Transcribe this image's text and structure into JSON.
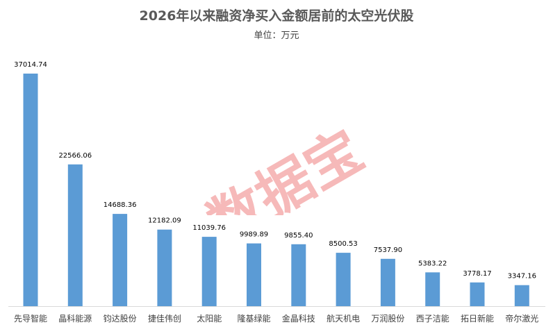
{
  "chart_data": {
    "type": "bar",
    "title": "2026年以来融资净买入金额居前的太空光伏股",
    "subtitle": "单位：万元",
    "categories": [
      "先导智能",
      "晶科能源",
      "钧达股份",
      "捷佳伟创",
      "太阳能",
      "隆基绿能",
      "金晶科技",
      "航天机电",
      "万润股份",
      "西子洁能",
      "拓日新能",
      "帝尔激光"
    ],
    "values": [
      37014.74,
      22566.06,
      14688.36,
      12182.09,
      11039.76,
      9989.89,
      9855.4,
      8500.53,
      7537.9,
      5383.22,
      3778.17,
      3347.16
    ],
    "value_labels": [
      "37014.74",
      "22566.06",
      "14688.36",
      "12182.09",
      "11039.76",
      "9989.89",
      "9855.40",
      "8500.53",
      "7537.90",
      "5383.22",
      "3778.17",
      "3347.16"
    ],
    "xlabel": "",
    "ylabel": "",
    "ylim": [
      0,
      40000
    ],
    "grid": false,
    "color": "#5b9bd5"
  },
  "watermark": {
    "text": "数据宝",
    "color": "#f08080"
  }
}
